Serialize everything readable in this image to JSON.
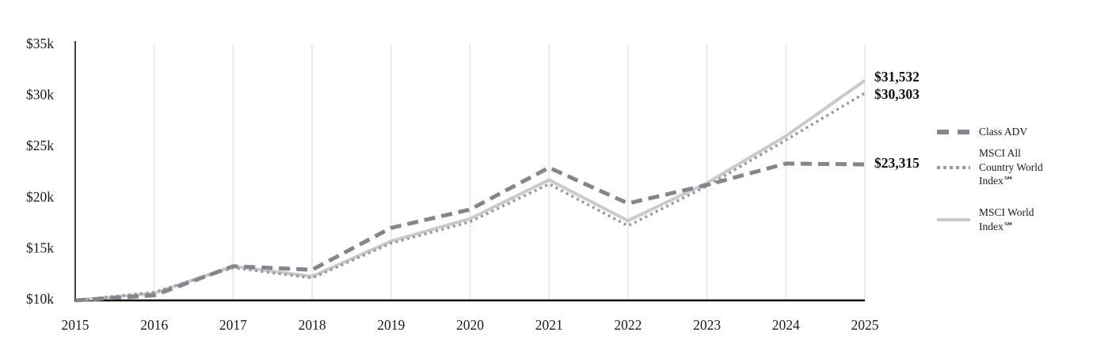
{
  "chart_data": {
    "type": "line",
    "x": [
      2015,
      2016,
      2017,
      2018,
      2019,
      2020,
      2021,
      2022,
      2023,
      2024,
      2025
    ],
    "x_labels": [
      "2015",
      "2016",
      "2017",
      "2018",
      "2019",
      "2020",
      "2021",
      "2022",
      "2023",
      "2024",
      "2025"
    ],
    "ylim": [
      10000,
      35000
    ],
    "yticks": [
      10000,
      15000,
      20000,
      25000,
      30000,
      35000
    ],
    "ytick_labels": [
      "$10k",
      "$15k",
      "$20k",
      "$25k",
      "$30k",
      "$35k"
    ],
    "grid": "vertical",
    "legend_position": "right",
    "series": [
      {
        "name": "Class ADV",
        "style": "dashed",
        "color": "#85858f",
        "end_label": "$23,315",
        "values": [
          10000,
          10500,
          13350,
          13000,
          17100,
          18900,
          23000,
          19500,
          21300,
          23400,
          23315
        ]
      },
      {
        "name": "MSCI All Country World Index℠",
        "style": "dotted",
        "color": "#9898a0",
        "end_label": "$30,303",
        "values": [
          10000,
          10800,
          13200,
          12200,
          15600,
          17700,
          21400,
          17300,
          21200,
          25700,
          30303
        ]
      },
      {
        "name": "MSCI World Index℠",
        "style": "solid",
        "color": "#c9c9ce",
        "end_label": "$31,532",
        "values": [
          10000,
          10700,
          13350,
          12350,
          15800,
          18000,
          21800,
          17800,
          21500,
          26100,
          31532
        ]
      }
    ],
    "colors": {
      "grid": "#d8d8d8",
      "axis": "#000000",
      "text": "#1a1a1a"
    }
  }
}
